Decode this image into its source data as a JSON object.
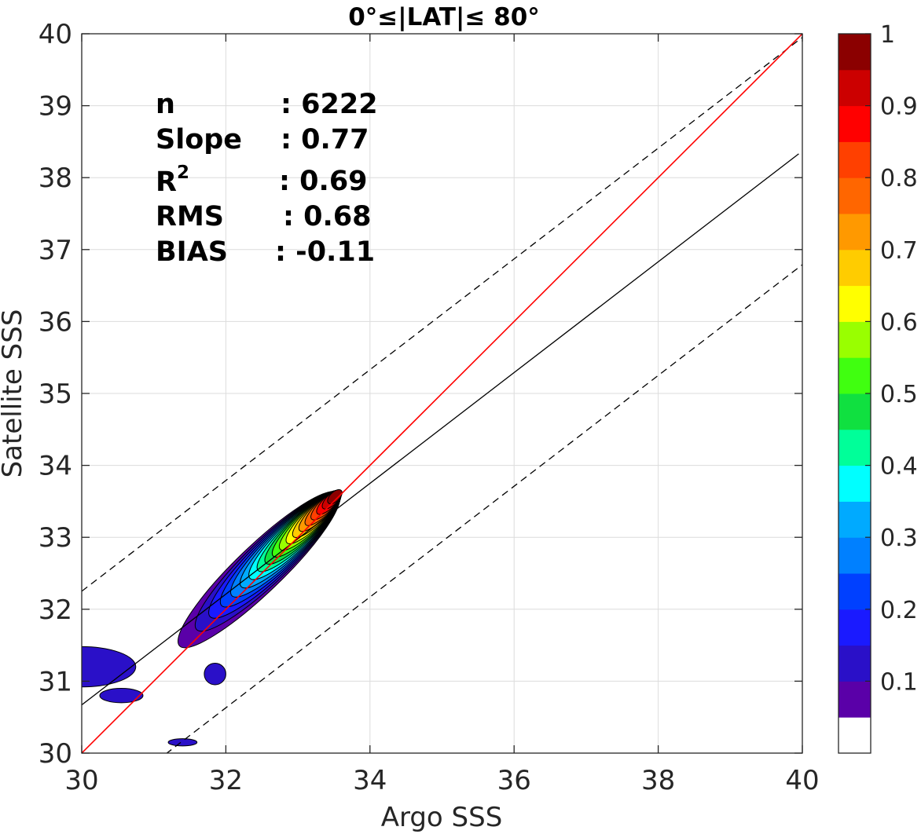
{
  "chart_data": {
    "type": "contour",
    "title": "0°≤|LAT|≤ 80°",
    "xlabel": "Argo SSS",
    "ylabel": "Satellite SSS",
    "xlim": [
      30,
      40
    ],
    "ylim": [
      30,
      40
    ],
    "xticks": [
      "30",
      "32",
      "34",
      "36",
      "38",
      "40"
    ],
    "yticks": [
      "30",
      "31",
      "32",
      "33",
      "34",
      "35",
      "36",
      "37",
      "38",
      "39",
      "40"
    ],
    "grid": true,
    "stats": {
      "n_label": "n",
      "n_value": ": 6222",
      "slope_label": "Slope",
      "slope_value": ": 0.77",
      "r2_label": "R",
      "r2_sup": "2",
      "r2_value": ": 0.69",
      "rms_label": "RMS",
      "rms_value": ": 0.68",
      "bias_label": "BIAS",
      "bias_value": ": -0.11"
    },
    "lines": {
      "one_to_one": {
        "slope": 1,
        "intercept": 0,
        "color": "#ff0000"
      },
      "fit": {
        "slope": 0.77,
        "intercept": 7.57,
        "x_range": [
          30,
          39.95
        ]
      },
      "upper_bound": {
        "slope": 0.77,
        "intercept": 9.15
      },
      "lower_bound": {
        "slope": 0.77,
        "intercept": 5.99
      }
    },
    "density_peak": {
      "x": 33.55,
      "y": 33.6,
      "value": 0.95
    },
    "contour_levels": [
      0.05,
      0.1,
      0.15,
      0.2,
      0.25,
      0.3,
      0.35,
      0.4,
      0.45,
      0.5,
      0.55,
      0.6,
      0.65,
      0.7,
      0.75,
      0.8,
      0.85,
      0.9,
      0.95
    ],
    "colorbar": {
      "range": [
        0,
        1
      ],
      "ticks": [
        "0.1",
        "0.2",
        "0.3",
        "0.4",
        "0.5",
        "0.6",
        "0.7",
        "0.8",
        "0.9",
        "1"
      ],
      "colors": [
        "#ffffff",
        "#5a00a8",
        "#2a10c8",
        "#1a1aff",
        "#0040ff",
        "#0080ff",
        "#00aaff",
        "#00ffff",
        "#00ff99",
        "#10e040",
        "#40ff10",
        "#99ff00",
        "#ffff00",
        "#ffcc00",
        "#ff9900",
        "#ff6600",
        "#ff4000",
        "#ff0000",
        "#cc0000",
        "#8b0000"
      ]
    }
  }
}
